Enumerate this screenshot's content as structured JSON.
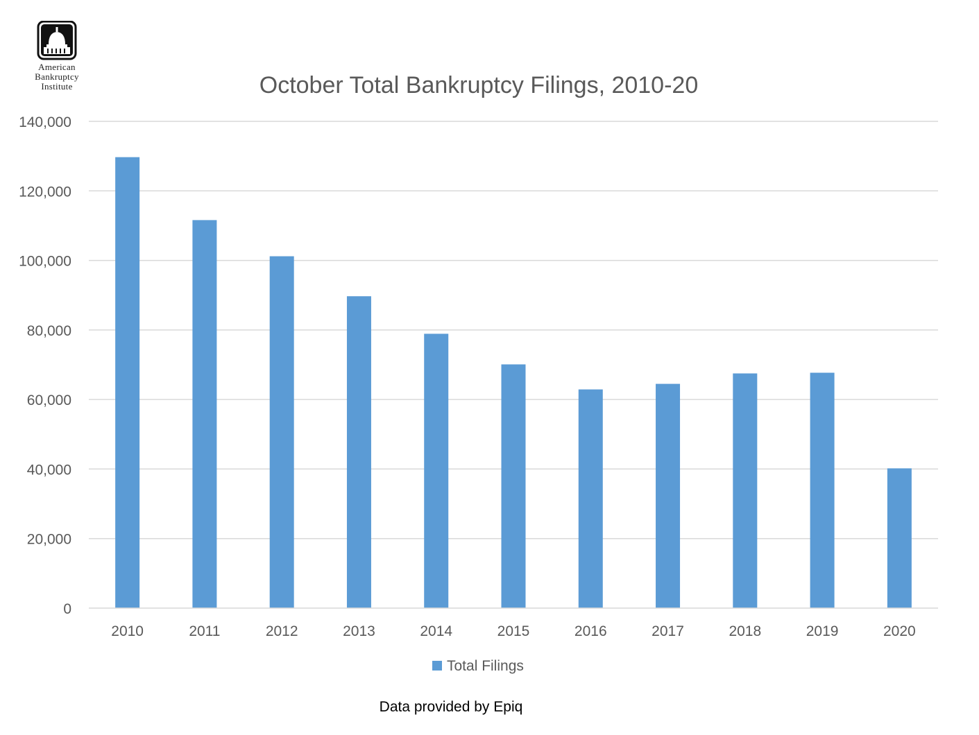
{
  "logo": {
    "line1": "American",
    "line2": "Bankruptcy",
    "line3": "Institute",
    "icon": "capitol-dome-icon"
  },
  "chart_data": {
    "type": "bar",
    "title": "October Total Bankruptcy Filings, 2010-20",
    "categories": [
      "2010",
      "2011",
      "2012",
      "2013",
      "2014",
      "2015",
      "2016",
      "2017",
      "2018",
      "2019",
      "2020"
    ],
    "series": [
      {
        "name": "Total Filings",
        "color": "#5B9BD5",
        "values": [
          129700,
          111600,
          101200,
          89700,
          78900,
          70100,
          62900,
          64500,
          67500,
          67700,
          40200
        ]
      }
    ],
    "yticks": [
      "0",
      "20,000",
      "40,000",
      "60,000",
      "80,000",
      "100,000",
      "120,000",
      "140,000"
    ],
    "ylim": [
      0,
      140000
    ],
    "grid": true,
    "legend": "bottom-center"
  },
  "source_note": "Data provided by Epiq"
}
